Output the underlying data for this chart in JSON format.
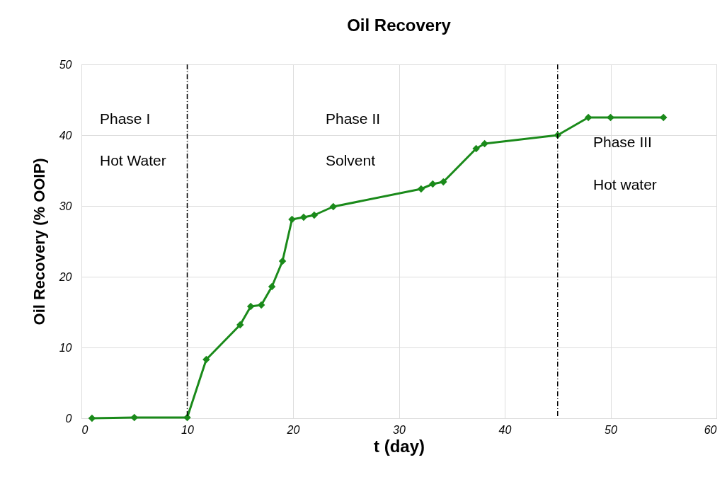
{
  "chart_data": {
    "type": "line",
    "title": "Oil Recovery",
    "xlabel": "t (day)",
    "ylabel": "Oil Recovery (% OOIP)",
    "x": [
      1,
      5,
      10,
      11.8,
      15,
      16,
      17,
      18,
      19,
      19.9,
      21,
      22,
      23.8,
      32.1,
      33.2,
      34.2,
      37.3,
      38.1,
      45,
      47.9,
      50,
      55
    ],
    "series": [
      {
        "color": "#1a8a1a",
        "values": [
          0,
          0.1,
          0.1,
          8.3,
          13.2,
          15.8,
          16,
          18.6,
          22.2,
          28.1,
          28.4,
          28.7,
          29.9,
          32.4,
          33.1,
          33.4,
          38.1,
          38.8,
          40,
          42.5,
          42.5,
          42.5
        ]
      }
    ],
    "xlim": [
      0,
      60
    ],
    "xticks": [
      0,
      10,
      20,
      30,
      40,
      50,
      60
    ],
    "ylim": [
      0,
      50
    ],
    "yticks": [
      0,
      10,
      20,
      30,
      40,
      50
    ],
    "grid": true,
    "marker": "diamond",
    "line_style": "solid",
    "ref_lines": [
      {
        "axis": "x",
        "value": 10,
        "color": "#000000",
        "line_style": "dashed"
      },
      {
        "axis": "x",
        "value": 45,
        "color": "#000000",
        "line_style": "dashed"
      }
    ],
    "annotations": [
      "Phase I",
      "Hot Water",
      "Phase II",
      "Solvent",
      "Phase III",
      "Hot water"
    ]
  }
}
